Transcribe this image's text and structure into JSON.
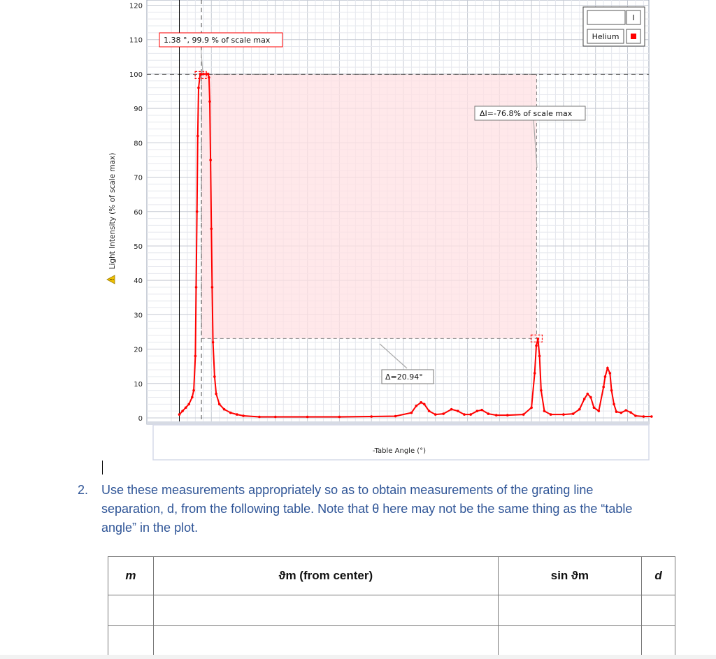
{
  "chart_data": {
    "type": "line",
    "title": "",
    "xlabel": "-Table Angle (°)",
    "ylabel": "Light Intensity (% of scale max)",
    "xlim": [
      -0.5,
      29.5
    ],
    "ylim": [
      -2,
      120
    ],
    "x_ticks": [
      0,
      2,
      4,
      6,
      8,
      10,
      12,
      14,
      16,
      18,
      20,
      22,
      24,
      26,
      28
    ],
    "y_ticks": [
      0,
      10,
      20,
      30,
      40,
      50,
      60,
      70,
      80,
      90,
      100,
      110,
      120
    ],
    "grid": true,
    "legend": "top-right",
    "series": [
      {
        "name": "Helium",
        "color": "#ff0000",
        "x": [
          0,
          0.2,
          0.4,
          0.6,
          0.8,
          0.9,
          1.0,
          1.05,
          1.1,
          1.15,
          1.2,
          1.3,
          1.38,
          1.5,
          1.7,
          1.8,
          1.85,
          1.9,
          1.95,
          2.0,
          2.05,
          2.1,
          2.2,
          2.3,
          2.5,
          2.8,
          3.2,
          3.6,
          4.0,
          5.0,
          6.0,
          8.0,
          10.0,
          12.0,
          13.5,
          14.5,
          14.8,
          15.1,
          15.3,
          15.6,
          16.0,
          16.5,
          17.0,
          17.4,
          17.8,
          18.2,
          18.6,
          18.9,
          19.3,
          19.8,
          20.5,
          21.5,
          22.0,
          22.2,
          22.3,
          22.4,
          22.5,
          22.6,
          22.8,
          23.2,
          24.0,
          24.6,
          25.0,
          25.3,
          25.5,
          25.7,
          25.9,
          26.2,
          26.5,
          26.6,
          26.75,
          26.9,
          27.0,
          27.15,
          27.3,
          27.6,
          27.9,
          28.2,
          28.5,
          29.0,
          29.5
        ],
        "y": [
          1,
          2,
          3,
          4,
          6,
          8,
          18,
          38,
          60,
          82,
          96,
          100,
          99.9,
          100,
          100,
          100,
          99,
          92,
          75,
          55,
          38,
          22,
          12,
          7,
          4,
          2.5,
          1.5,
          1,
          0.6,
          0.3,
          0.3,
          0.3,
          0.3,
          0.4,
          0.5,
          1.5,
          3.5,
          4.5,
          4.0,
          2.0,
          1.0,
          1.2,
          2.5,
          2.0,
          1.0,
          1.0,
          2.0,
          2.3,
          1.2,
          0.8,
          0.8,
          1.0,
          3.0,
          13,
          21,
          23,
          18,
          8,
          2,
          1,
          1,
          1.2,
          2.5,
          5.5,
          7.0,
          6.0,
          3.0,
          2.0,
          9,
          12,
          14.5,
          13,
          8,
          4,
          1.8,
          1.5,
          2.2,
          1.6,
          0.6,
          0.4,
          0.4
        ]
      }
    ],
    "annotations": {
      "point_readout": "1.38 °, 99.9 % of scale max",
      "delta_intensity": "ΔI=-76.8% of scale max",
      "delta_angle": "Δ=20.94°"
    },
    "legend_entries": [
      "Helium"
    ],
    "cursor_rect": {
      "x1": 1.38,
      "x2": 22.32,
      "y_low": 23.1,
      "y_high": 99.9
    }
  },
  "legend": {
    "top_symbol": "I",
    "series_label": "Helium"
  },
  "question": {
    "number": "2.",
    "text": "Use these measurements appropriately so as to obtain measurements of the grating line separation, d, from the following table. Note that θ here may not be the same thing as the “table angle” in the plot."
  },
  "table": {
    "headers": [
      "m",
      "ϑm (from center)",
      "sin ϑm",
      "d"
    ],
    "rows": [
      [
        "",
        "",
        "",
        ""
      ],
      [
        "",
        "",
        "",
        ""
      ]
    ]
  }
}
